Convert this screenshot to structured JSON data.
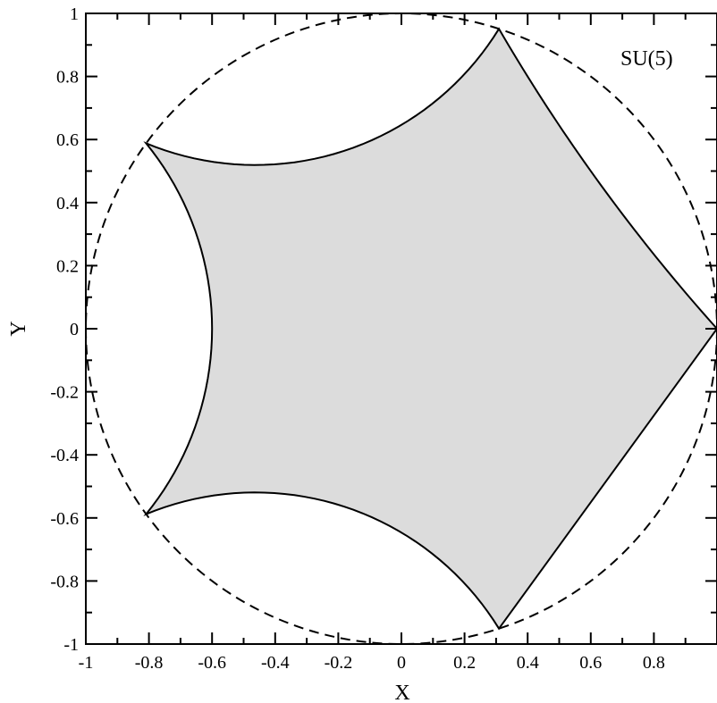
{
  "chart_data": {
    "type": "scatter",
    "title": "",
    "xlabel": "X",
    "ylabel": "Y",
    "xlim": [
      -1,
      1
    ],
    "ylim": [
      -1,
      1
    ],
    "grid": false,
    "legend": "none",
    "annotations": [
      {
        "text": "SU(5)",
        "placement": "top-right"
      }
    ],
    "x_ticks": [
      {
        "value": -1,
        "label": "-1"
      },
      {
        "value": -0.8,
        "label": "-0.8"
      },
      {
        "value": -0.6,
        "label": "-0.6"
      },
      {
        "value": -0.4,
        "label": "-0.4"
      },
      {
        "value": -0.2,
        "label": "-0.2"
      },
      {
        "value": 0,
        "label": "0"
      },
      {
        "value": 0.2,
        "label": "0.2"
      },
      {
        "value": 0.4,
        "label": "0.4"
      },
      {
        "value": 0.6,
        "label": "0.6"
      },
      {
        "value": 0.8,
        "label": "0.8"
      }
    ],
    "y_ticks": [
      {
        "value": 1,
        "label": "1"
      },
      {
        "value": 0.8,
        "label": "0.8"
      },
      {
        "value": 0.6,
        "label": "0.6"
      },
      {
        "value": 0.4,
        "label": "0.4"
      },
      {
        "value": 0.2,
        "label": "0.2"
      },
      {
        "value": 0,
        "label": "0"
      },
      {
        "value": -0.2,
        "label": "-0.2"
      },
      {
        "value": -0.4,
        "label": "-0.4"
      },
      {
        "value": -0.6,
        "label": "-0.6"
      },
      {
        "value": -0.8,
        "label": "-0.8"
      },
      {
        "value": -1,
        "label": "-1"
      }
    ],
    "minor_tick_step": 0.1,
    "shapes": [
      {
        "kind": "unit-circle",
        "style": "dashed",
        "color": "#000000"
      },
      {
        "kind": "region",
        "fill": "#dcdcdc",
        "stroke": "#000000",
        "vertices": [
          [
            1,
            0
          ],
          [
            0.309,
            0.951
          ],
          [
            -0.809,
            0.588
          ],
          [
            -0.809,
            -0.588
          ],
          [
            0.309,
            -0.951
          ]
        ],
        "edge_midpoints": [
          [
            0.309,
            0.951
          ],
          [
            -0.5,
            0.52
          ],
          [
            -0.6,
            0
          ],
          [
            -0.5,
            -0.52
          ],
          [
            0.309,
            -0.951
          ]
        ]
      }
    ]
  }
}
